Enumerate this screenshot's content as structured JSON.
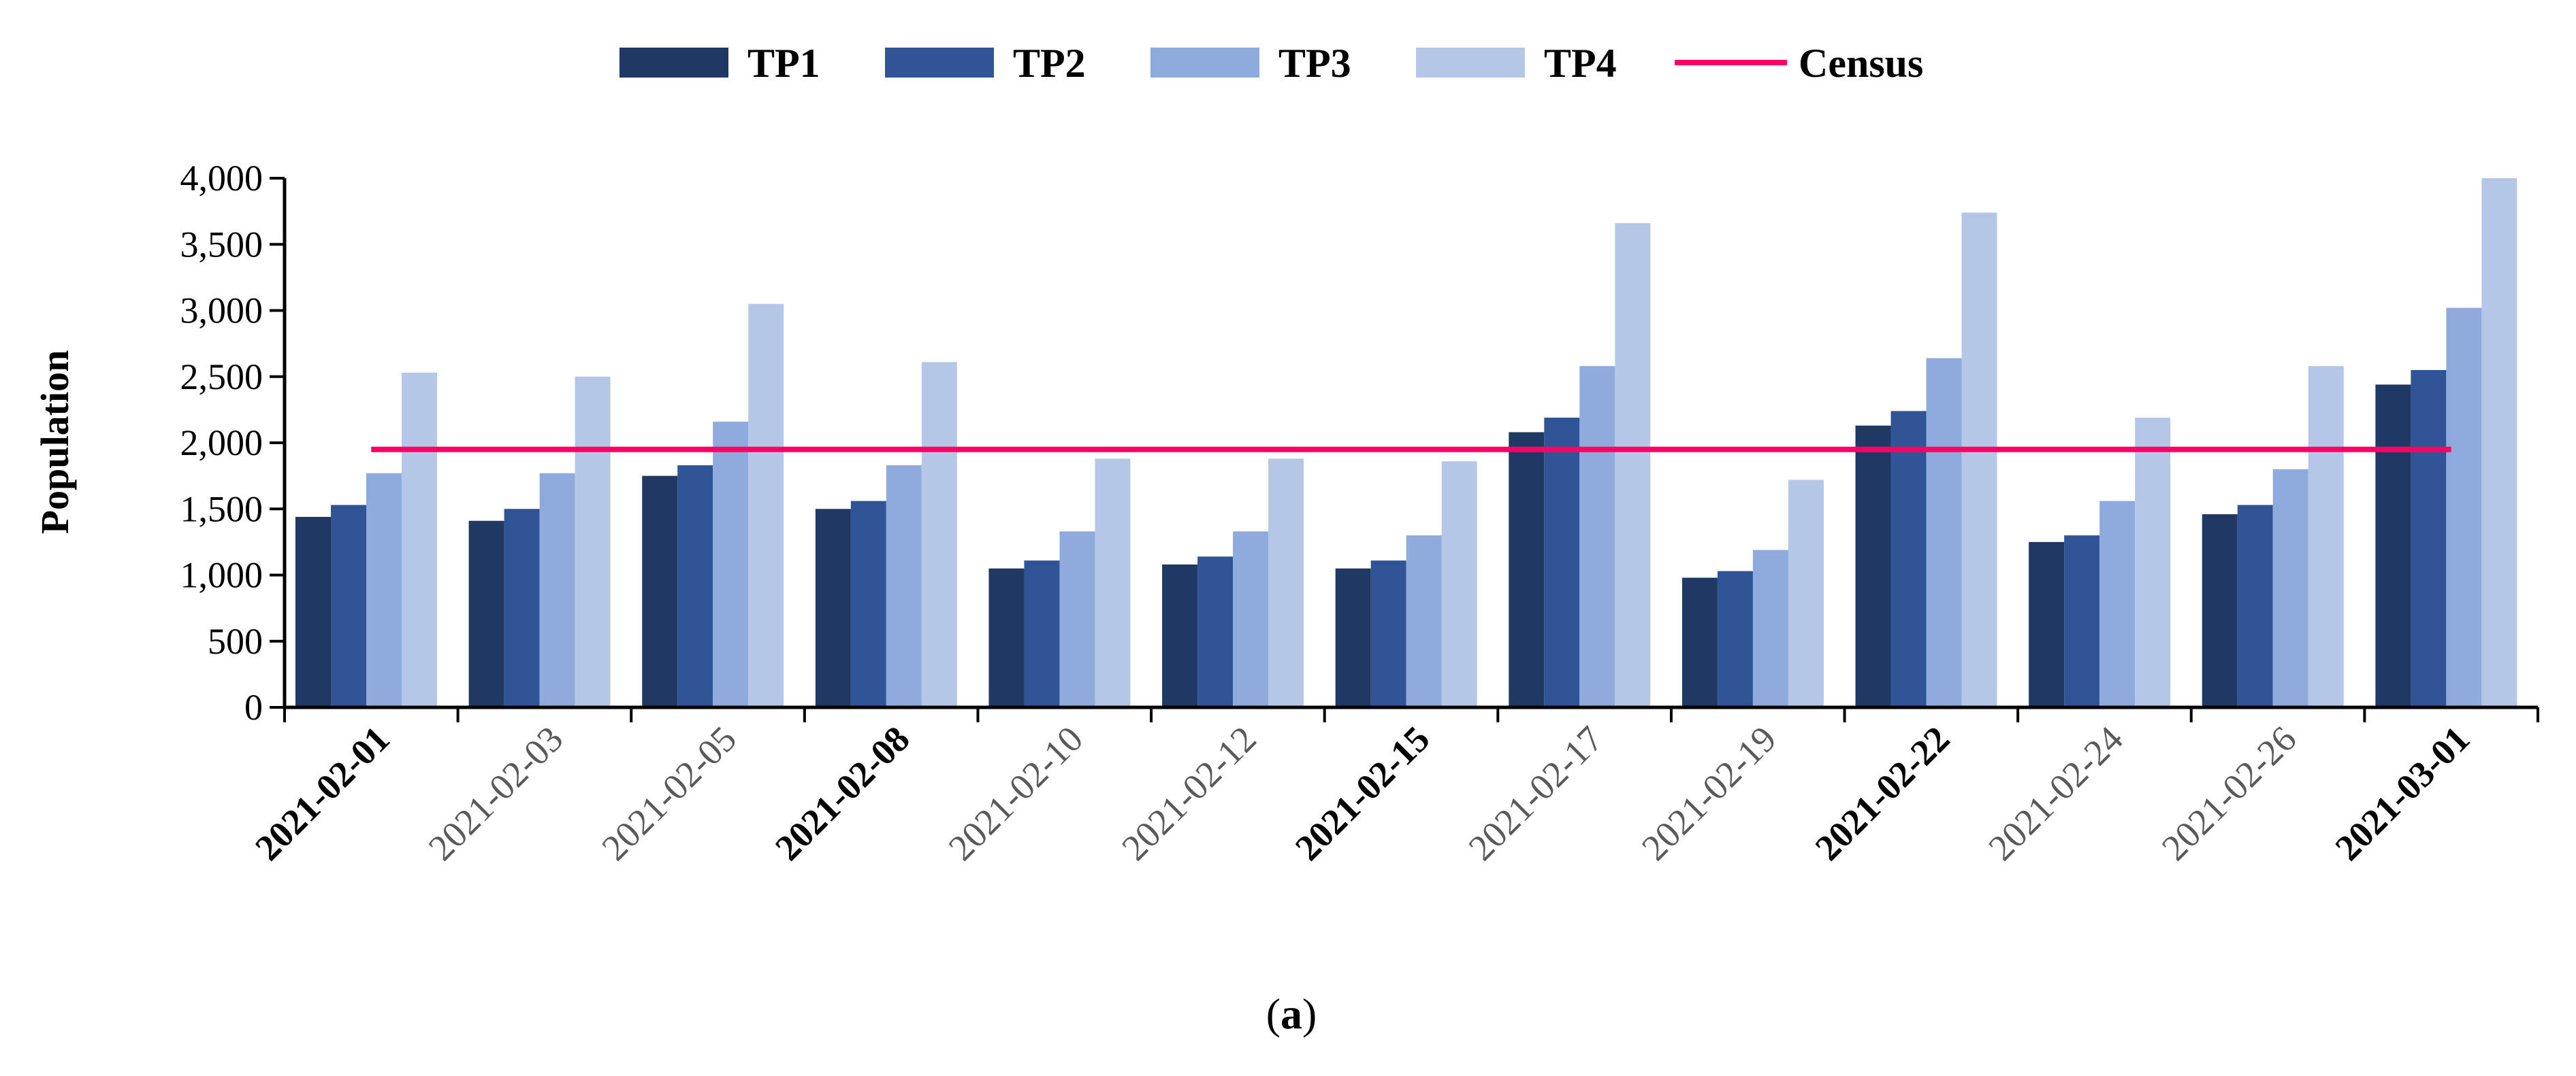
{
  "colors": {
    "TP1": "#203864",
    "TP2": "#2f5597",
    "TP3": "#8faadc",
    "TP4": "#b4c7e7",
    "Census": "#ff0066",
    "axis": "#000000"
  },
  "caption": {
    "prefix": "(",
    "letter": "a",
    "suffix": ")"
  },
  "chart_data": {
    "type": "bar",
    "title": "",
    "xlabel": "",
    "ylabel": "Population",
    "ylim": [
      0,
      4000
    ],
    "yticks": [
      0,
      500,
      1000,
      1500,
      2000,
      2500,
      3000,
      3500,
      4000
    ],
    "ytick_labels": [
      "0",
      "500",
      "1,000",
      "1,500",
      "2,000",
      "2,500",
      "3,000",
      "3,500",
      "4,000"
    ],
    "grid": false,
    "legend_position": "top-center",
    "categories": [
      "2021-02-01",
      "2021-02-03",
      "2021-02-05",
      "2021-02-08",
      "2021-02-10",
      "2021-02-12",
      "2021-02-15",
      "2021-02-17",
      "2021-02-19",
      "2021-02-22",
      "2021-02-24",
      "2021-02-26",
      "2021-03-01"
    ],
    "bold_categories": [
      "2021-02-01",
      "2021-02-08",
      "2021-02-15",
      "2021-02-22",
      "2021-03-01"
    ],
    "series": [
      {
        "name": "TP1",
        "type": "bar",
        "values": [
          1440,
          1410,
          1750,
          1500,
          1050,
          1080,
          1050,
          2080,
          980,
          2130,
          1250,
          1460,
          2440
        ]
      },
      {
        "name": "TP2",
        "type": "bar",
        "values": [
          1530,
          1500,
          1830,
          1560,
          1110,
          1140,
          1110,
          2190,
          1030,
          2240,
          1300,
          1530,
          2550
        ]
      },
      {
        "name": "TP3",
        "type": "bar",
        "values": [
          1770,
          1770,
          2160,
          1830,
          1330,
          1330,
          1300,
          2580,
          1190,
          2640,
          1560,
          1800,
          3020
        ]
      },
      {
        "name": "TP4",
        "type": "bar",
        "values": [
          2530,
          2500,
          3050,
          2610,
          1880,
          1880,
          1860,
          3660,
          1720,
          3740,
          2190,
          2580,
          4000
        ]
      }
    ],
    "reference_lines": [
      {
        "name": "Census",
        "type": "line",
        "value": 1950
      }
    ]
  }
}
